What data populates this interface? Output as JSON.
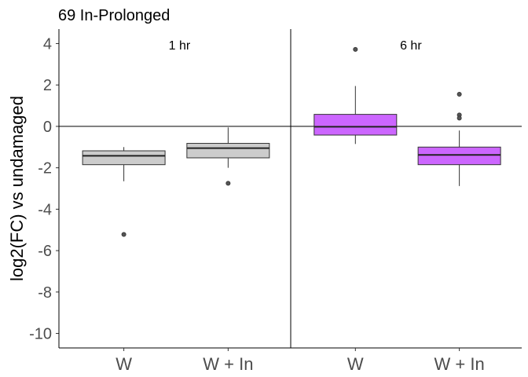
{
  "chart_data": {
    "type": "box",
    "title": "69 In-Prolonged",
    "ylabel": "log2(FC) vs undamaged",
    "ylim": [
      -10.7,
      4.7
    ],
    "yticks": [
      4,
      2,
      0,
      -2,
      -4,
      -6,
      -8,
      -10
    ],
    "hline": 0,
    "panels": [
      {
        "label": "1 hr",
        "boxes": [
          {
            "category": "W",
            "fill": "#cccccc",
            "q1": -1.85,
            "median": -1.42,
            "q3": -1.18,
            "whisker_low": -2.65,
            "whisker_high": -1.0,
            "outliers": [
              -5.22
            ]
          },
          {
            "category": "W + In",
            "fill": "#cccccc",
            "q1": -1.52,
            "median": -1.05,
            "q3": -0.82,
            "whisker_low": -2.0,
            "whisker_high": -0.05,
            "outliers": [
              -2.75
            ]
          }
        ]
      },
      {
        "label": "6 hr",
        "boxes": [
          {
            "category": "W",
            "fill": "#cc66ff",
            "q1": -0.42,
            "median": -0.02,
            "q3": 0.58,
            "whisker_low": -0.85,
            "whisker_high": 1.95,
            "outliers": [
              3.72
            ]
          },
          {
            "category": "W + In",
            "fill": "#cc66ff",
            "q1": -1.85,
            "median": -1.38,
            "q3": -1.0,
            "whisker_low": -2.88,
            "whisker_high": -0.2,
            "outliers": [
              1.55,
              0.55,
              0.4
            ]
          }
        ]
      }
    ]
  }
}
